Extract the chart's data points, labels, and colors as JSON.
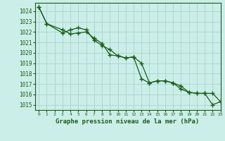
{
  "title": "Graphe pression niveau de la mer (hPa)",
  "background_color": "#cceee8",
  "grid_color": "#aad8d0",
  "line_color": "#1a5c1a",
  "marker_color": "#1a5c1a",
  "xlim": [
    -0.5,
    23
  ],
  "ylim": [
    1014.5,
    1024.8
  ],
  "yticks": [
    1015,
    1016,
    1017,
    1018,
    1019,
    1020,
    1021,
    1022,
    1023,
    1024
  ],
  "xticks": [
    0,
    1,
    2,
    3,
    4,
    5,
    6,
    7,
    8,
    9,
    10,
    11,
    12,
    13,
    14,
    15,
    16,
    17,
    18,
    19,
    20,
    21,
    22,
    23
  ],
  "series1_x": [
    0,
    1,
    3,
    4,
    5,
    6,
    7,
    8,
    9,
    10,
    11,
    12,
    13,
    14,
    15,
    16,
    17,
    18,
    19,
    20,
    21,
    22,
    23
  ],
  "series1_y": [
    1024.4,
    1022.8,
    1021.9,
    1022.2,
    1022.4,
    1022.2,
    1021.2,
    1020.7,
    1020.3,
    1019.7,
    1019.5,
    1019.6,
    1017.5,
    1017.1,
    1017.3,
    1017.3,
    1017.1,
    1016.5,
    1016.2,
    1016.1,
    1016.1,
    1015.0,
    1015.3
  ],
  "series2_x": [
    0,
    1,
    3,
    4,
    5,
    6,
    7,
    8,
    9,
    10,
    11,
    12,
    13,
    14,
    15,
    16,
    17,
    18,
    19,
    20,
    21,
    22,
    23
  ],
  "series2_y": [
    1024.4,
    1022.8,
    1022.2,
    1021.8,
    1021.9,
    1022.0,
    1021.4,
    1020.9,
    1019.8,
    1019.7,
    1019.5,
    1019.6,
    1019.0,
    1017.1,
    1017.3,
    1017.3,
    1017.1,
    1016.8,
    1016.2,
    1016.1,
    1016.1,
    1016.1,
    1015.3
  ],
  "ytick_fontsize": 5.5,
  "xtick_fontsize": 4.5,
  "title_fontsize": 6.5
}
